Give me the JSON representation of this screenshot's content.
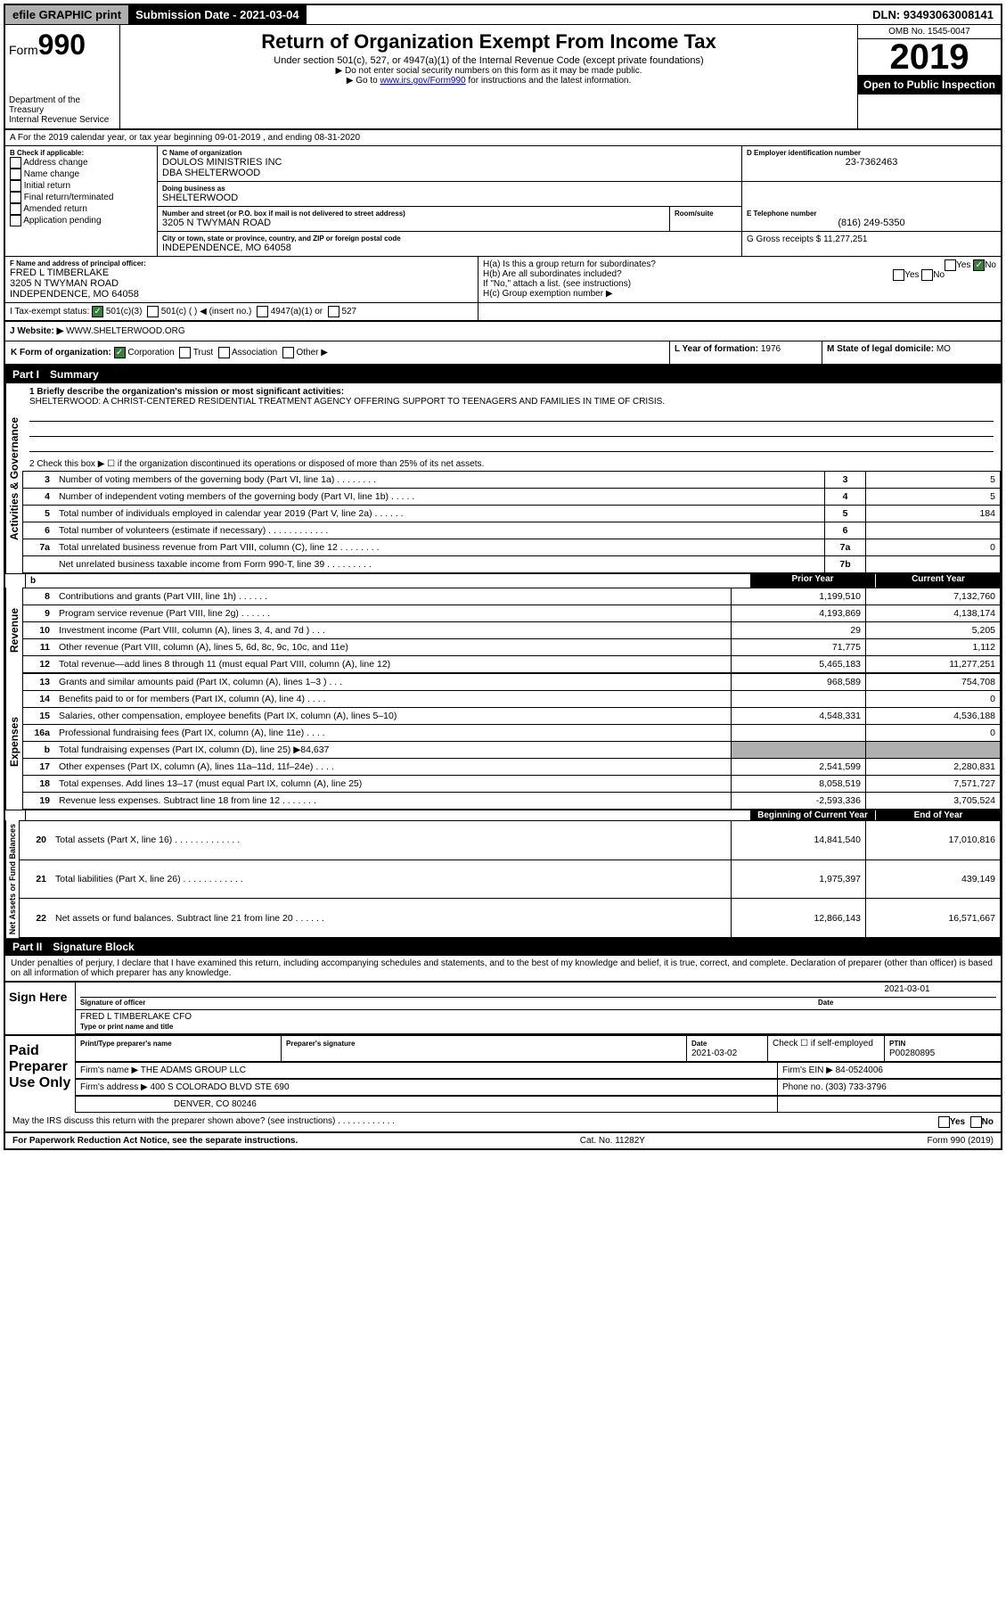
{
  "topbar": {
    "efile": "efile GRAPHIC print",
    "subdate_label": "Submission Date - 2021-03-04",
    "dln": "DLN: 93493063008141"
  },
  "header": {
    "form_prefix": "Form",
    "form_num": "990",
    "dept": "Department of the Treasury",
    "irs": "Internal Revenue Service",
    "title": "Return of Organization Exempt From Income Tax",
    "subtitle": "Under section 501(c), 527, or 4947(a)(1) of the Internal Revenue Code (except private foundations)",
    "note1": "▶ Do not enter social security numbers on this form as it may be made public.",
    "note2_pre": "▶ Go to ",
    "note2_link": "www.irs.gov/Form990",
    "note2_post": " for instructions and the latest information.",
    "omb": "OMB No. 1545-0047",
    "year": "2019",
    "inspect": "Open to Public Inspection"
  },
  "period": {
    "line": "A For the 2019 calendar year, or tax year beginning 09-01-2019   , and ending 08-31-2020"
  },
  "boxB": {
    "label": "B Check if applicable:",
    "opts": [
      "Address change",
      "Name change",
      "Initial return",
      "Final return/terminated",
      "Amended return",
      "Application pending"
    ]
  },
  "boxC": {
    "label": "C Name of organization",
    "name": "DOULOS MINISTRIES INC",
    "dba": "DBA SHELTERWOOD",
    "dba_label": "Doing business as",
    "dba_val": "SHELTERWOOD",
    "addr_label": "Number and street (or P.O. box if mail is not delivered to street address)",
    "addr": "3205 N TWYMAN ROAD",
    "room_label": "Room/suite",
    "city_label": "City or town, state or province, country, and ZIP or foreign postal code",
    "city": "INDEPENDENCE, MO  64058"
  },
  "boxD": {
    "label": "D Employer identification number",
    "val": "23-7362463"
  },
  "boxE": {
    "label": "E Telephone number",
    "val": "(816) 249-5350"
  },
  "boxG": {
    "label": "G Gross receipts $",
    "val": "11,277,251"
  },
  "boxF": {
    "label": "F Name and address of principal officer:",
    "name": "FRED L TIMBERLAKE",
    "addr": "3205 N TWYMAN ROAD",
    "city": "INDEPENDENCE, MO  64058"
  },
  "boxH": {
    "a": "H(a)  Is this a group return for subordinates?",
    "b": "H(b)  Are all subordinates included?",
    "note": "If \"No,\" attach a list. (see instructions)",
    "c": "H(c)  Group exemption number ▶",
    "yes": "Yes",
    "no": "No"
  },
  "boxI": {
    "label": "I   Tax-exempt status:",
    "o1": "501(c)(3)",
    "o2": "501(c) (   ) ◀ (insert no.)",
    "o3": "4947(a)(1) or",
    "o4": "527"
  },
  "boxJ": {
    "label": "J   Website: ▶",
    "val": "WWW.SHELTERWOOD.ORG"
  },
  "boxK": {
    "label": "K Form of organization:",
    "o1": "Corporation",
    "o2": "Trust",
    "o3": "Association",
    "o4": "Other ▶"
  },
  "boxL": {
    "label": "L Year of formation:",
    "val": "1976"
  },
  "boxM": {
    "label": "M State of legal domicile:",
    "val": "MO"
  },
  "part1": {
    "title": "Part I",
    "sub": "Summary",
    "line1_label": "1  Briefly describe the organization's mission or most significant activities:",
    "line1_val": "SHELTERWOOD: A CHRIST-CENTERED RESIDENTIAL TREATMENT AGENCY OFFERING SUPPORT TO TEENAGERS AND FAMILIES IN TIME OF CRISIS.",
    "line2": "2  Check this box ▶ ☐  if the organization discontinued its operations or disposed of more than 25% of its net assets.",
    "rows_top": [
      {
        "n": "3",
        "d": "Number of voting members of the governing body (Part VI, line 1a)  .    .    .    .    .    .    .    .",
        "b": "3",
        "v": "5"
      },
      {
        "n": "4",
        "d": "Number of independent voting members of the governing body (Part VI, line 1b)  .    .    .    .    .",
        "b": "4",
        "v": "5"
      },
      {
        "n": "5",
        "d": "Total number of individuals employed in calendar year 2019 (Part V, line 2a)  .    .    .    .    .    .",
        "b": "5",
        "v": "184"
      },
      {
        "n": "6",
        "d": "Total number of volunteers (estimate if necessary)   .    .    .    .    .    .    .    .    .    .    .    .",
        "b": "6",
        "v": ""
      },
      {
        "n": "7a",
        "d": "Total unrelated business revenue from Part VIII, column (C), line 12  .    .    .    .    .    .    .    .",
        "b": "7a",
        "v": "0"
      },
      {
        "n": "",
        "d": "Net unrelated business taxable income from Form 990-T, line 39   .    .    .    .    .    .    .    .    .",
        "b": "7b",
        "v": ""
      }
    ],
    "hdr_prior": "Prior Year",
    "hdr_current": "Current Year",
    "revenue": [
      {
        "n": "8",
        "d": "Contributions and grants (Part VIII, line 1h)  .    .    .    .    .    .",
        "p": "1,199,510",
        "c": "7,132,760"
      },
      {
        "n": "9",
        "d": "Program service revenue (Part VIII, line 2g)   .    .    .    .    .    .",
        "p": "4,193,869",
        "c": "4,138,174"
      },
      {
        "n": "10",
        "d": "Investment income (Part VIII, column (A), lines 3, 4, and 7d )   .    .    .",
        "p": "29",
        "c": "5,205"
      },
      {
        "n": "11",
        "d": "Other revenue (Part VIII, column (A), lines 5, 6d, 8c, 9c, 10c, and 11e)",
        "p": "71,775",
        "c": "1,112"
      },
      {
        "n": "12",
        "d": "Total revenue—add lines 8 through 11 (must equal Part VIII, column (A), line 12)",
        "p": "5,465,183",
        "c": "11,277,251"
      }
    ],
    "expenses": [
      {
        "n": "13",
        "d": "Grants and similar amounts paid (Part IX, column (A), lines 1–3 )  .    .    .",
        "p": "968,589",
        "c": "754,708"
      },
      {
        "n": "14",
        "d": "Benefits paid to or for members (Part IX, column (A), line 4)  .    .    .    .",
        "p": "",
        "c": "0"
      },
      {
        "n": "15",
        "d": "Salaries, other compensation, employee benefits (Part IX, column (A), lines 5–10)",
        "p": "4,548,331",
        "c": "4,536,188"
      },
      {
        "n": "16a",
        "d": "Professional fundraising fees (Part IX, column (A), line 11e)  .    .    .    .",
        "p": "",
        "c": "0"
      },
      {
        "n": "b",
        "d": "Total fundraising expenses (Part IX, column (D), line 25) ▶84,637",
        "p": "SHADE",
        "c": "SHADE"
      },
      {
        "n": "17",
        "d": "Other expenses (Part IX, column (A), lines 11a–11d, 11f–24e)  .    .    .    .",
        "p": "2,541,599",
        "c": "2,280,831"
      },
      {
        "n": "18",
        "d": "Total expenses. Add lines 13–17 (must equal Part IX, column (A), line 25)",
        "p": "8,058,519",
        "c": "7,571,727"
      },
      {
        "n": "19",
        "d": "Revenue less expenses. Subtract line 18 from line 12 .    .    .    .    .    .    .",
        "p": "-2,593,336",
        "c": "3,705,524"
      }
    ],
    "hdr_begin": "Beginning of Current Year",
    "hdr_end": "End of Year",
    "netassets": [
      {
        "n": "20",
        "d": "Total assets (Part X, line 16)  .    .    .    .    .    .    .    .    .    .    .    .    .",
        "p": "14,841,540",
        "c": "17,010,816"
      },
      {
        "n": "21",
        "d": "Total liabilities (Part X, line 26)  .    .    .    .    .    .    .    .    .    .    .    .",
        "p": "1,975,397",
        "c": "439,149"
      },
      {
        "n": "22",
        "d": "Net assets or fund balances. Subtract line 21 from line 20 .    .    .    .    .    .",
        "p": "12,866,143",
        "c": "16,571,667"
      }
    ],
    "side_labels": {
      "act": "Activities & Governance",
      "rev": "Revenue",
      "exp": "Expenses",
      "net": "Net Assets or Fund Balances"
    }
  },
  "part2": {
    "title": "Part II",
    "sub": "Signature Block",
    "penalty": "Under penalties of perjury, I declare that I have examined this return, including accompanying schedules and statements, and to the best of my knowledge and belief, it is true, correct, and complete. Declaration of preparer (other than officer) is based on all information of which preparer has any knowledge.",
    "sign_here": "Sign Here",
    "sig_officer": "Signature of officer",
    "sig_date": "2021-03-01",
    "date_label": "Date",
    "officer_name": "FRED L TIMBERLAKE  CFO",
    "type_name": "Type or print name and title",
    "paid": "Paid Preparer Use Only",
    "prep_name_label": "Print/Type preparer's name",
    "prep_sig_label": "Preparer's signature",
    "prep_date_label": "Date",
    "prep_date": "2021-03-02",
    "self_emp": "Check ☐ if self-employed",
    "ptin_label": "PTIN",
    "ptin": "P00280895",
    "firm_name_label": "Firm's name    ▶",
    "firm_name": "THE ADAMS GROUP LLC",
    "firm_ein_label": "Firm's EIN ▶",
    "firm_ein": "84-0524006",
    "firm_addr_label": "Firm's address ▶",
    "firm_addr1": "400 S COLORADO BLVD STE 690",
    "firm_addr2": "DENVER, CO  80246",
    "phone_label": "Phone no.",
    "phone": "(303) 733-3796",
    "discuss": "May the IRS discuss this return with the preparer shown above? (see instructions)   .    .    .    .    .    .    .    .    .    .    .    .",
    "yes": "Yes",
    "no": "No"
  },
  "footer": {
    "left": "For Paperwork Reduction Act Notice, see the separate instructions.",
    "mid": "Cat. No. 11282Y",
    "right": "Form 990 (2019)"
  }
}
